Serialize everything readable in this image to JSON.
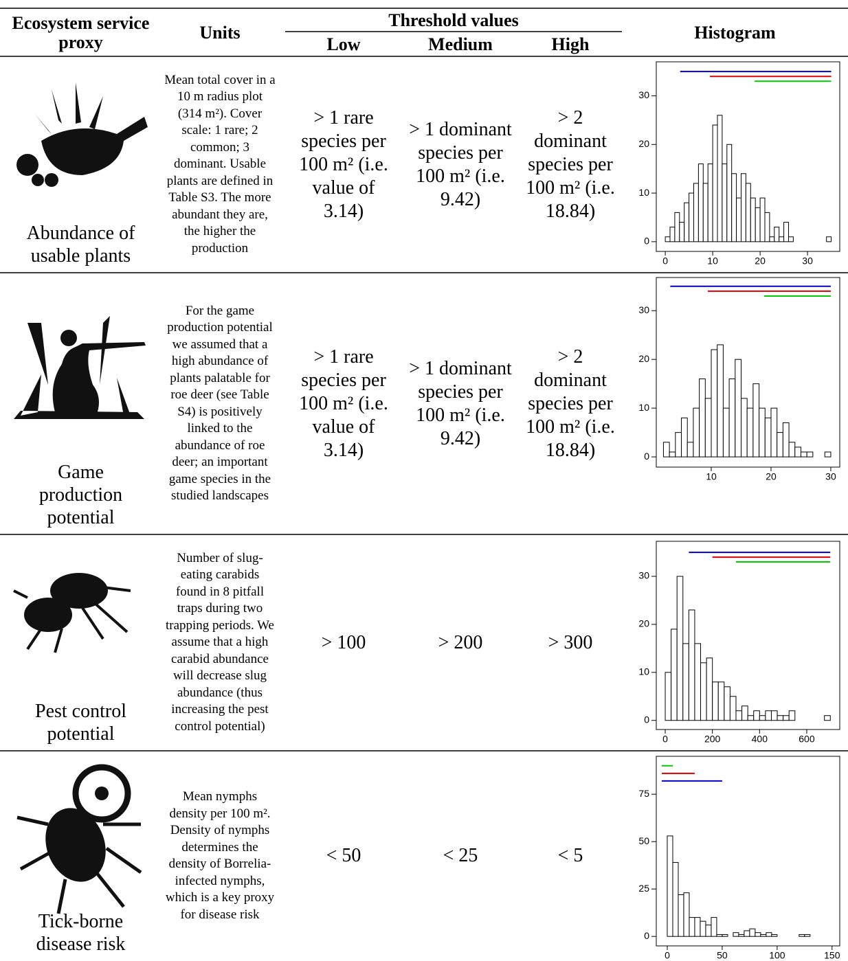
{
  "header": {
    "proxy": "Ecosystem service proxy",
    "units": "Units",
    "threshold_values": "Threshold values",
    "low": "Low",
    "medium": "Medium",
    "high": "High",
    "histogram": "Histogram"
  },
  "rows": [
    {
      "proxy": "Abundance of usable plants",
      "units": "Mean total cover in a 10 m radius plot (314 m²). Cover scale: 1 rare; 2 common; 3 dominant. Usable plants are defined in Table S3. The more abundant they are, the higher the production",
      "low": "> 1 rare species per 100 m² (i.e. value of 3.14)",
      "medium": "> 1 dominant species per 100 m² (i.e. 9.42)",
      "high": "> 2 dominant species per 100 m² (i.e. 18.84)",
      "histogram": {
        "type": "histogram",
        "bins": [
          0,
          1,
          2,
          3,
          4,
          5,
          6,
          7,
          8,
          9,
          10,
          11,
          12,
          13,
          14,
          15,
          16,
          17,
          18,
          19,
          20,
          21,
          22,
          23,
          24,
          25,
          26,
          27,
          28,
          29,
          30,
          31,
          32,
          33,
          34,
          35
        ],
        "counts": [
          1,
          3,
          6,
          4,
          8,
          10,
          12,
          16,
          12,
          16,
          24,
          26,
          16,
          20,
          14,
          9,
          14,
          12,
          9,
          7,
          9,
          6,
          1,
          3,
          1,
          4,
          1,
          0,
          0,
          0,
          0,
          0,
          0,
          0,
          1
        ],
        "xlim": [
          -1.9,
          36.8
        ],
        "ylim": [
          -2,
          37
        ],
        "xticks": [
          0,
          10,
          20,
          30
        ],
        "yticks": [
          0,
          10,
          20,
          30
        ],
        "thresholds": [
          {
            "color": "#0000cc",
            "from": 3.14,
            "to": 35,
            "y": 35
          },
          {
            "color": "#dd0000",
            "from": 9.42,
            "to": 35,
            "y": 34
          },
          {
            "color": "#00cc00",
            "from": 18.84,
            "to": 35,
            "y": 33
          }
        ]
      }
    },
    {
      "proxy": "Game production potential",
      "units": "For the game production potential we assumed that a high abundance of plants palatable for roe deer (see Table S4) is positively linked to the abundance of roe deer; an important game species in the studied landscapes",
      "low": "> 1 rare species per 100 m² (i.e. value of 3.14)",
      "medium": "> 1 dominant species per 100 m² (i.e. 9.42)",
      "high": "> 2 dominant species per 100 m² (i.e. 18.84)",
      "histogram": {
        "type": "histogram",
        "bins": [
          2,
          3,
          4,
          5,
          6,
          7,
          8,
          9,
          10,
          11,
          12,
          13,
          14,
          15,
          16,
          17,
          18,
          19,
          20,
          21,
          22,
          23,
          24,
          25,
          26,
          27,
          28,
          29,
          30
        ],
        "counts": [
          3,
          1,
          5,
          8,
          3,
          10,
          16,
          12,
          22,
          23,
          10,
          16,
          20,
          12,
          10,
          15,
          10,
          8,
          10,
          5,
          7,
          3,
          2,
          1,
          1,
          0,
          0,
          1
        ],
        "xlim": [
          0.8,
          31.5
        ],
        "ylim": [
          -2.1,
          36.8
        ],
        "xticks": [
          10,
          20,
          30
        ],
        "yticks": [
          0,
          10,
          20,
          30
        ],
        "thresholds": [
          {
            "color": "#0000cc",
            "from": 3.14,
            "to": 30,
            "y": 35
          },
          {
            "color": "#dd0000",
            "from": 9.42,
            "to": 30,
            "y": 34
          },
          {
            "color": "#00cc00",
            "from": 18.84,
            "to": 30,
            "y": 33
          }
        ]
      }
    },
    {
      "proxy": "Pest control potential",
      "units": "Number of slug-eating carabids found in 8 pitfall traps during two trapping periods. We assume that a high carabid abundance will decrease slug abundance (thus increasing the pest control potential)",
      "low": "> 100",
      "medium": "> 200",
      "high": "> 300",
      "histogram": {
        "type": "histogram",
        "bins": [
          0,
          25,
          50,
          75,
          100,
          125,
          150,
          175,
          200,
          225,
          250,
          275,
          300,
          325,
          350,
          375,
          400,
          425,
          450,
          475,
          500,
          525,
          550,
          575,
          600,
          625,
          650,
          675,
          700
        ],
        "counts": [
          10,
          19,
          30,
          16,
          23,
          16,
          12,
          13,
          8,
          8,
          7,
          5,
          2,
          3,
          1,
          2,
          1,
          2,
          2,
          1,
          1,
          2,
          0,
          0,
          0,
          0,
          0,
          1
        ],
        "xlim": [
          -38,
          740
        ],
        "ylim": [
          -1.9,
          37.3
        ],
        "xticks": [
          0,
          200,
          400,
          600
        ],
        "yticks": [
          0,
          10,
          20,
          30
        ],
        "thresholds": [
          {
            "color": "#0000cc",
            "from": 100,
            "to": 700,
            "y": 35
          },
          {
            "color": "#dd0000",
            "from": 200,
            "to": 700,
            "y": 34
          },
          {
            "color": "#00cc00",
            "from": 300,
            "to": 700,
            "y": 33
          }
        ]
      }
    },
    {
      "proxy": "Tick-borne disease risk",
      "units": "Mean nymphs density per 100 m². Density of nymphs determines the density of Borrelia- infected nymphs, which is a key proxy for disease risk",
      "low": "< 50",
      "medium": "< 25",
      "high": "< 5",
      "histogram": {
        "type": "histogram",
        "bins": [
          0,
          5,
          10,
          15,
          20,
          25,
          30,
          35,
          40,
          45,
          50,
          55,
          60,
          65,
          70,
          75,
          80,
          85,
          90,
          95,
          100,
          105,
          110,
          115,
          120,
          125,
          130,
          135,
          140,
          145,
          150
        ],
        "counts": [
          53,
          39,
          22,
          23,
          10,
          10,
          8,
          6,
          10,
          1,
          1,
          0,
          2,
          1,
          3,
          4,
          2,
          1,
          2,
          1,
          0,
          0,
          0,
          0,
          1,
          1,
          0,
          0,
          0,
          0
        ],
        "xlim": [
          -10,
          157
        ],
        "ylim": [
          -5,
          95
        ],
        "xticks": [
          0,
          50,
          100,
          150
        ],
        "yticks": [
          0,
          25,
          50,
          75
        ],
        "thresholds": [
          {
            "color": "#00cc00",
            "from": -5,
            "to": 5,
            "y": 90
          },
          {
            "color": "#dd0000",
            "from": -5,
            "to": 25,
            "y": 86
          },
          {
            "color": "#0000cc",
            "from": -5,
            "to": 50,
            "y": 82
          }
        ]
      }
    }
  ]
}
